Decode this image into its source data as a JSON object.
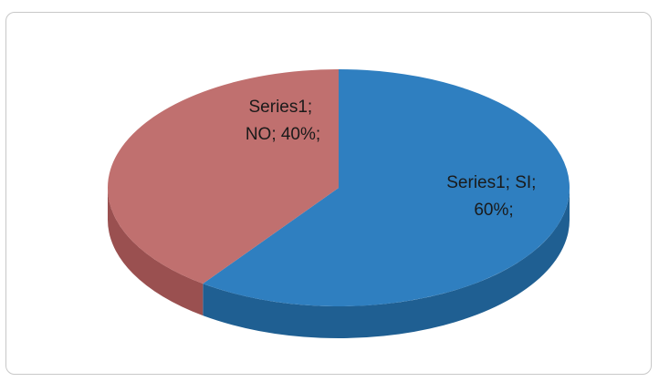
{
  "chart_data": {
    "type": "pie",
    "style": "3d",
    "series": [
      {
        "name": "Series1",
        "categories": [
          "SI",
          "NO"
        ],
        "values": [
          60,
          40
        ],
        "colors": [
          "#2f7fc0",
          "#c0706f"
        ],
        "side_colors": [
          "#1f5f92",
          "#9a5050"
        ]
      }
    ],
    "data_labels": [
      {
        "line1": "Series1; SI;",
        "line2": "60%;"
      },
      {
        "line1": "Series1;",
        "line2": "NO; 40%;"
      }
    ],
    "legend": "none",
    "title": ""
  }
}
